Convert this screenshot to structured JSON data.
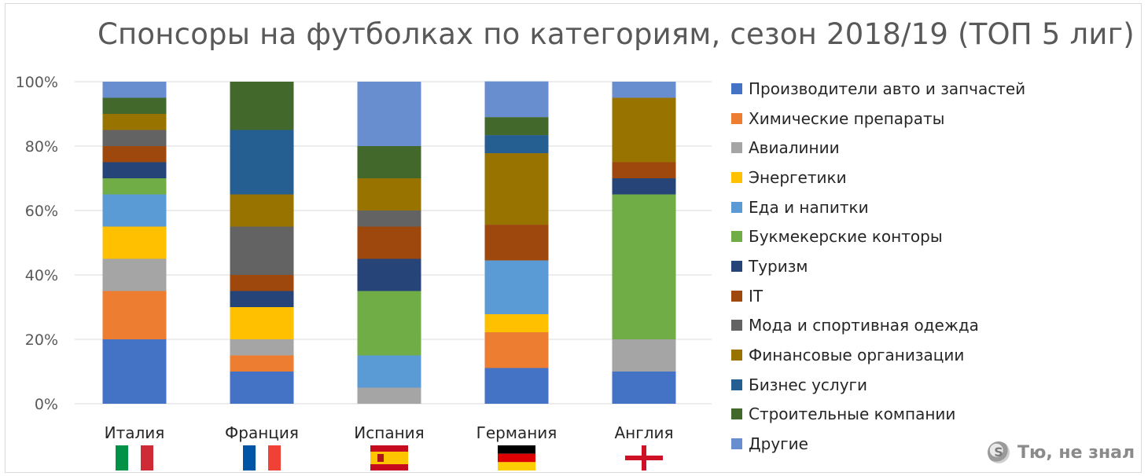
{
  "chart_data": {
    "type": "bar",
    "stacked": true,
    "title": "Спонсоры на футболках по категориям, сезон 2018/19 (ТОП 5 лиг)",
    "categories": [
      "Италия",
      "Франция",
      "Испания",
      "Германия",
      "Англия"
    ],
    "y_ticks": [
      "0%",
      "20%",
      "40%",
      "60%",
      "80%",
      "100%"
    ],
    "ylim": [
      0,
      100
    ],
    "grid": true,
    "legend_position": "right",
    "series": [
      {
        "name": "Производители авто и запчастей",
        "color": "#4472c4",
        "values": [
          20,
          10,
          0,
          11.1,
          10
        ]
      },
      {
        "name": "Химические препараты",
        "color": "#ed7d31",
        "values": [
          15,
          5,
          0,
          11.1,
          0
        ]
      },
      {
        "name": "Авиалинии",
        "color": "#a5a5a5",
        "values": [
          10,
          5,
          5,
          0,
          10
        ]
      },
      {
        "name": "Энергетики",
        "color": "#ffc000",
        "values": [
          10,
          10,
          0,
          5.6,
          0
        ]
      },
      {
        "name": "Еда и напитки",
        "color": "#5b9bd5",
        "values": [
          10,
          0,
          10,
          16.7,
          0
        ]
      },
      {
        "name": "Букмекерские конторы",
        "color": "#70ad47",
        "values": [
          5,
          0,
          20,
          0,
          45
        ]
      },
      {
        "name": "Туризм",
        "color": "#264478",
        "values": [
          5,
          5,
          10,
          0,
          5
        ]
      },
      {
        "name": "IT",
        "color": "#9e480e",
        "values": [
          5,
          5,
          10,
          11.1,
          5
        ]
      },
      {
        "name": "Мода и спортивная одежда",
        "color": "#636363",
        "values": [
          5,
          15,
          5,
          0,
          0
        ]
      },
      {
        "name": "Финансовые организации",
        "color": "#997300",
        "values": [
          5,
          10,
          10,
          22.2,
          20
        ]
      },
      {
        "name": "Бизнес услуги",
        "color": "#255e91",
        "values": [
          0,
          20,
          0,
          5.6,
          0
        ]
      },
      {
        "name": "Строительные компании",
        "color": "#43682b",
        "values": [
          5,
          15,
          10,
          5.6,
          0
        ]
      },
      {
        "name": "Другие",
        "color": "#698ed0",
        "values": [
          5,
          0,
          20,
          11.1,
          5
        ]
      }
    ],
    "flags": [
      "italy-flag",
      "france-flag",
      "spain-flag",
      "germany-flag",
      "england-flag"
    ]
  },
  "watermark": {
    "icon_text": "S",
    "text": "Тю, не знал"
  }
}
